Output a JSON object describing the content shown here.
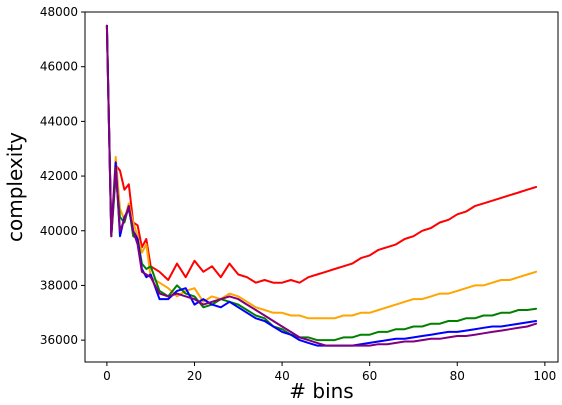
{
  "chart_data": {
    "type": "line",
    "title": "",
    "xlabel": "# bins",
    "ylabel": "complexity",
    "xlim": [
      -5,
      103
    ],
    "ylim": [
      35200,
      48000
    ],
    "xticks": [
      0,
      20,
      40,
      60,
      80,
      100
    ],
    "xtick_labels": [
      "0",
      "20",
      "40",
      "60",
      "80",
      "100"
    ],
    "yticks": [
      36000,
      38000,
      40000,
      42000,
      44000,
      46000,
      48000
    ],
    "ytick_labels": [
      "36000",
      "38000",
      "40000",
      "42000",
      "44000",
      "46000",
      "48000"
    ],
    "grid": false,
    "legend": "none",
    "series": [
      {
        "color": "#ff0000",
        "x": [
          0,
          1,
          2,
          3,
          4,
          5,
          6,
          7,
          8,
          9,
          10,
          12,
          14,
          16,
          18,
          20,
          22,
          24,
          26,
          28,
          30,
          32,
          34,
          36,
          38,
          40,
          42,
          44,
          46,
          48,
          50,
          52,
          54,
          56,
          58,
          60,
          62,
          64,
          66,
          68,
          70,
          72,
          74,
          76,
          78,
          80,
          82,
          84,
          86,
          88,
          90,
          92,
          94,
          96,
          98
        ],
        "y": [
          47500,
          39800,
          42400,
          42200,
          41500,
          41700,
          40300,
          40200,
          39400,
          39700,
          38700,
          38500,
          38200,
          38800,
          38300,
          38900,
          38500,
          38700,
          38300,
          38800,
          38400,
          38300,
          38100,
          38200,
          38100,
          38100,
          38200,
          38100,
          38300,
          38400,
          38500,
          38600,
          38700,
          38800,
          39000,
          39100,
          39300,
          39400,
          39500,
          39700,
          39800,
          40000,
          40100,
          40300,
          40400,
          40600,
          40700,
          40900,
          41000,
          41100,
          41200,
          41300,
          41400,
          41500,
          41600
        ]
      },
      {
        "color": "#ffa500",
        "x": [
          0,
          1,
          2,
          3,
          4,
          5,
          6,
          7,
          8,
          9,
          10,
          12,
          14,
          16,
          18,
          20,
          22,
          24,
          26,
          28,
          30,
          32,
          34,
          36,
          38,
          40,
          42,
          44,
          46,
          48,
          50,
          52,
          54,
          56,
          58,
          60,
          62,
          64,
          66,
          68,
          70,
          72,
          74,
          76,
          78,
          80,
          82,
          84,
          86,
          88,
          90,
          92,
          94,
          96,
          98
        ],
        "y": [
          47500,
          40000,
          42700,
          40800,
          40400,
          41000,
          40300,
          39800,
          39200,
          39500,
          38300,
          38100,
          37900,
          37600,
          37800,
          37900,
          37400,
          37600,
          37500,
          37700,
          37600,
          37400,
          37200,
          37100,
          37000,
          37000,
          36900,
          36900,
          36800,
          36800,
          36800,
          36800,
          36900,
          36900,
          37000,
          37000,
          37100,
          37200,
          37300,
          37400,
          37500,
          37500,
          37600,
          37700,
          37700,
          37800,
          37900,
          38000,
          38000,
          38100,
          38200,
          38200,
          38300,
          38400,
          38500
        ]
      },
      {
        "color": "#008000",
        "x": [
          0,
          1,
          2,
          3,
          4,
          5,
          6,
          7,
          8,
          9,
          10,
          12,
          14,
          16,
          18,
          20,
          22,
          24,
          26,
          28,
          30,
          32,
          34,
          36,
          38,
          40,
          42,
          44,
          46,
          48,
          50,
          52,
          54,
          56,
          58,
          60,
          62,
          64,
          66,
          68,
          70,
          72,
          74,
          76,
          78,
          80,
          82,
          84,
          86,
          88,
          90,
          92,
          94,
          96,
          98
        ],
        "y": [
          47500,
          39800,
          42000,
          40500,
          40300,
          40900,
          39800,
          39700,
          38800,
          38600,
          38700,
          37800,
          37600,
          38000,
          37700,
          37600,
          37200,
          37300,
          37500,
          37400,
          37300,
          37100,
          36900,
          36800,
          36500,
          36400,
          36200,
          36100,
          36100,
          36000,
          36000,
          36000,
          36100,
          36100,
          36200,
          36200,
          36300,
          36300,
          36400,
          36400,
          36500,
          36500,
          36600,
          36600,
          36700,
          36700,
          36800,
          36800,
          36900,
          36900,
          37000,
          37000,
          37100,
          37100,
          37150
        ]
      },
      {
        "color": "#0000ff",
        "x": [
          0,
          1,
          2,
          3,
          4,
          5,
          6,
          7,
          8,
          9,
          10,
          12,
          14,
          16,
          18,
          20,
          22,
          24,
          26,
          28,
          30,
          32,
          34,
          36,
          38,
          40,
          42,
          44,
          46,
          48,
          50,
          52,
          54,
          56,
          58,
          60,
          62,
          64,
          66,
          68,
          70,
          72,
          74,
          76,
          78,
          80,
          82,
          84,
          86,
          88,
          90,
          92,
          94,
          96,
          98
        ],
        "y": [
          47500,
          39900,
          42500,
          39800,
          40500,
          40800,
          40000,
          39700,
          38600,
          38300,
          38400,
          37500,
          37500,
          37800,
          37900,
          37300,
          37500,
          37300,
          37200,
          37400,
          37200,
          37000,
          36800,
          36700,
          36500,
          36300,
          36200,
          36000,
          35900,
          35800,
          35800,
          35800,
          35800,
          35800,
          35850,
          35900,
          35950,
          36000,
          36050,
          36050,
          36100,
          36150,
          36200,
          36250,
          36300,
          36300,
          36350,
          36400,
          36450,
          36500,
          36500,
          36550,
          36600,
          36650,
          36700
        ]
      },
      {
        "color": "#800080",
        "x": [
          0,
          1,
          2,
          3,
          4,
          5,
          6,
          7,
          8,
          9,
          10,
          12,
          14,
          16,
          18,
          20,
          22,
          24,
          26,
          28,
          30,
          32,
          34,
          36,
          38,
          40,
          42,
          44,
          46,
          48,
          50,
          52,
          54,
          56,
          58,
          60,
          62,
          64,
          66,
          68,
          70,
          72,
          74,
          76,
          78,
          80,
          82,
          84,
          86,
          88,
          90,
          92,
          94,
          96,
          98
        ],
        "y": [
          47500,
          39800,
          42300,
          40000,
          40400,
          40900,
          40000,
          39500,
          38500,
          38400,
          38300,
          37700,
          37600,
          37700,
          37600,
          37500,
          37300,
          37400,
          37500,
          37600,
          37500,
          37300,
          37100,
          36900,
          36700,
          36500,
          36300,
          36100,
          36000,
          35900,
          35800,
          35800,
          35800,
          35800,
          35800,
          35800,
          35850,
          35850,
          35900,
          35950,
          35950,
          36000,
          36050,
          36050,
          36100,
          36150,
          36150,
          36200,
          36250,
          36300,
          36350,
          36400,
          36450,
          36500,
          36600
        ]
      }
    ]
  }
}
